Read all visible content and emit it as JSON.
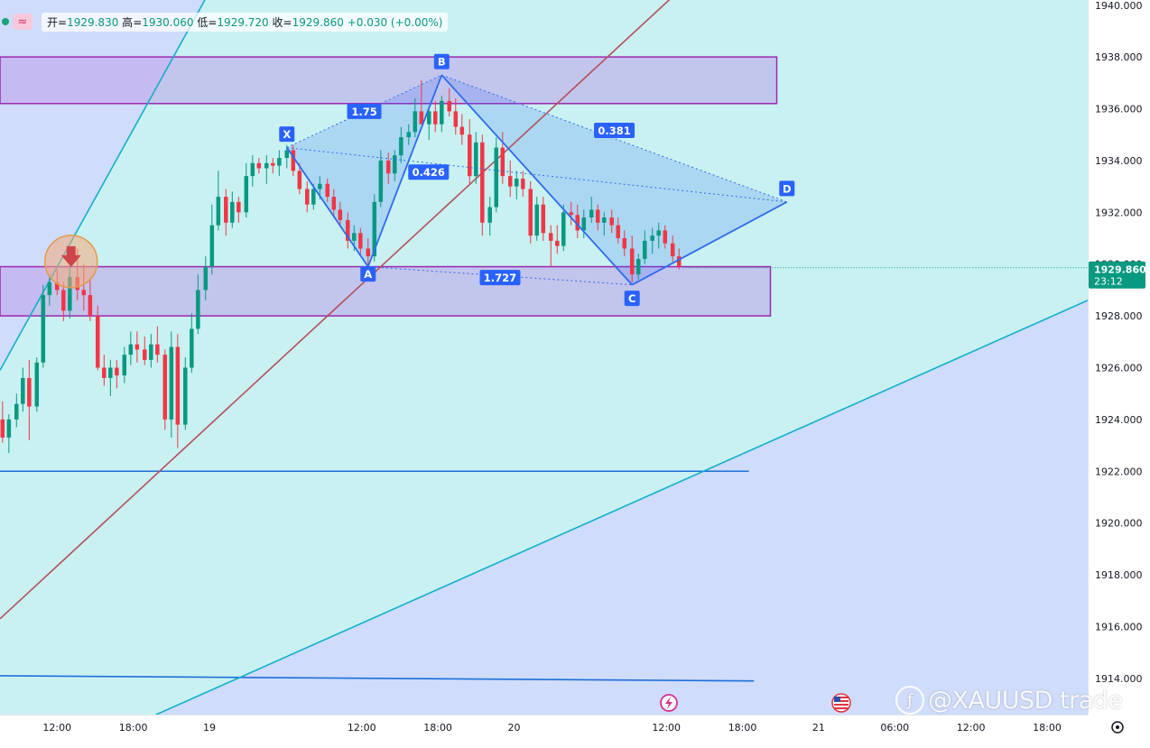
{
  "ohlc": {
    "open_label": "开",
    "open": "1929.830",
    "high_label": "高",
    "high": "1930.060",
    "low_label": "低",
    "low": "1929.720",
    "close_label": "收",
    "close": "1929.860",
    "change": "+0.030 (+0.00%)",
    "wave_icon": "≈"
  },
  "price_tag": {
    "price": "1929.860",
    "countdown": "23:12",
    "color": "#089981"
  },
  "watermark": {
    "icon": "ƒ",
    "text": "@XAUUSD trade"
  },
  "colors": {
    "background_cyan": "#c9f1f1",
    "background_blue": "#cfdcfb",
    "up": "#089981",
    "down": "#f23645",
    "harmonic": "#2962ff",
    "zone_border": "#9c27b0",
    "trendline_red": "#b5505a",
    "channel_cyan": "#12b0cc"
  },
  "chart_data": {
    "type": "candlestick",
    "instrument": "XAUUSD",
    "y_ticks": [
      "1914.000",
      "1916.000",
      "1918.000",
      "1920.000",
      "1922.000",
      "1924.000",
      "1926.000",
      "1928.000",
      "1930.000",
      "1932.000",
      "1934.000",
      "1936.000",
      "1938.000",
      "1940.000"
    ],
    "ylim": [
      1912.6,
      1940.2
    ],
    "x_ticks": [
      {
        "label": "12:00",
        "t": -4
      },
      {
        "label": "18:00",
        "t": 2
      },
      {
        "label": "19",
        "t": 8
      },
      {
        "label": "12:00",
        "t": 20
      },
      {
        "label": "18:00",
        "t": 26
      },
      {
        "label": "20",
        "t": 32
      },
      {
        "label": "12:00",
        "t": 44
      },
      {
        "label": "18:00",
        "t": 50
      },
      {
        "label": "21",
        "t": 56
      },
      {
        "label": "06:00",
        "t": 62
      },
      {
        "label": "12:00",
        "t": 68
      },
      {
        "label": "18:00",
        "t": 74
      }
    ],
    "xlim": [
      -8.5,
      77.2
    ],
    "candles": [
      [
        -8.3,
        1924.0,
        1924.7,
        1923.1,
        1923.3
      ],
      [
        -7.8,
        1923.3,
        1924.2,
        1922.7,
        1924.0
      ],
      [
        -7.2,
        1924.0,
        1925.0,
        1923.7,
        1924.6
      ],
      [
        -6.7,
        1924.6,
        1926.0,
        1924.3,
        1925.6
      ],
      [
        -6.2,
        1925.6,
        1926.3,
        1923.2,
        1924.5
      ],
      [
        -5.6,
        1924.5,
        1926.4,
        1924.3,
        1926.2
      ],
      [
        -5.1,
        1926.2,
        1929.2,
        1926.0,
        1928.8
      ],
      [
        -4.6,
        1928.8,
        1929.6,
        1928.4,
        1929.3
      ],
      [
        -4.0,
        1929.3,
        1929.8,
        1928.8,
        1929.0
      ],
      [
        -3.5,
        1929.0,
        1929.3,
        1927.8,
        1928.2
      ],
      [
        -3.0,
        1928.2,
        1929.9,
        1927.9,
        1929.5
      ],
      [
        -2.4,
        1929.5,
        1930.6,
        1928.6,
        1929.0
      ],
      [
        -1.9,
        1929.0,
        1930.0,
        1928.2,
        1928.8
      ],
      [
        -1.4,
        1928.8,
        1929.4,
        1927.8,
        1928.0
      ],
      [
        -0.8,
        1928.0,
        1928.4,
        1925.9,
        1926.0
      ],
      [
        -0.3,
        1926.0,
        1926.5,
        1925.3,
        1925.6
      ],
      [
        0.2,
        1925.6,
        1926.3,
        1924.9,
        1926.0
      ],
      [
        0.7,
        1926.0,
        1926.3,
        1925.2,
        1925.7
      ],
      [
        1.3,
        1925.7,
        1926.8,
        1925.4,
        1926.5
      ],
      [
        1.8,
        1926.5,
        1927.4,
        1926.1,
        1926.9
      ],
      [
        2.3,
        1926.9,
        1927.4,
        1926.2,
        1926.7
      ],
      [
        2.9,
        1926.7,
        1927.2,
        1926.1,
        1926.3
      ],
      [
        3.4,
        1926.3,
        1927.3,
        1926.0,
        1926.9
      ],
      [
        3.9,
        1926.9,
        1927.6,
        1926.2,
        1926.5
      ],
      [
        4.5,
        1926.5,
        1926.7,
        1923.6,
        1924.0
      ],
      [
        5.0,
        1924.0,
        1927.4,
        1923.3,
        1926.8
      ],
      [
        5.5,
        1926.8,
        1927.3,
        1922.9,
        1923.8
      ],
      [
        6.1,
        1923.8,
        1926.4,
        1923.6,
        1926.0
      ],
      [
        6.6,
        1926.0,
        1928.1,
        1925.8,
        1927.5
      ],
      [
        7.1,
        1927.5,
        1929.6,
        1927.3,
        1929.0
      ],
      [
        7.7,
        1929.0,
        1930.3,
        1928.6,
        1929.9
      ],
      [
        8.2,
        1929.9,
        1932.3,
        1929.6,
        1931.5
      ],
      [
        8.7,
        1931.5,
        1933.6,
        1931.3,
        1932.6
      ],
      [
        9.3,
        1932.6,
        1932.9,
        1931.1,
        1931.6
      ],
      [
        9.8,
        1931.6,
        1932.8,
        1931.4,
        1932.4
      ],
      [
        10.3,
        1932.4,
        1932.6,
        1931.6,
        1932.0
      ],
      [
        10.9,
        1932.0,
        1933.9,
        1931.8,
        1933.4
      ],
      [
        11.4,
        1933.4,
        1934.2,
        1933.0,
        1933.9
      ],
      [
        11.9,
        1933.9,
        1934.1,
        1933.5,
        1933.7
      ],
      [
        12.5,
        1933.7,
        1934.2,
        1933.1,
        1933.9
      ],
      [
        13.0,
        1933.9,
        1934.1,
        1933.5,
        1933.8
      ],
      [
        13.5,
        1933.8,
        1934.4,
        1933.4,
        1934.1
      ],
      [
        14.1,
        1934.1,
        1934.6,
        1933.7,
        1934.4
      ],
      [
        14.6,
        1934.4,
        1934.6,
        1933.4,
        1933.6
      ],
      [
        15.1,
        1933.6,
        1933.9,
        1932.7,
        1932.9
      ],
      [
        15.7,
        1932.9,
        1933.2,
        1932.0,
        1932.3
      ],
      [
        16.2,
        1932.3,
        1933.1,
        1932.1,
        1932.9
      ],
      [
        16.7,
        1932.9,
        1933.4,
        1932.5,
        1933.1
      ],
      [
        17.3,
        1933.1,
        1933.3,
        1932.4,
        1932.6
      ],
      [
        17.8,
        1932.6,
        1932.9,
        1931.8,
        1932.1
      ],
      [
        18.3,
        1932.1,
        1932.4,
        1931.5,
        1931.7
      ],
      [
        18.9,
        1931.7,
        1932.0,
        1930.6,
        1930.9
      ],
      [
        19.4,
        1930.9,
        1931.5,
        1930.5,
        1931.2
      ],
      [
        19.9,
        1931.2,
        1931.4,
        1930.3,
        1930.6
      ],
      [
        20.5,
        1930.6,
        1931.0,
        1929.9,
        1930.3
      ],
      [
        21.0,
        1930.3,
        1932.7,
        1930.1,
        1932.4
      ],
      [
        21.5,
        1932.4,
        1934.4,
        1932.2,
        1934.0
      ],
      [
        22.1,
        1934.0,
        1934.3,
        1933.1,
        1933.5
      ],
      [
        22.6,
        1933.5,
        1934.4,
        1933.2,
        1934.2
      ],
      [
        23.1,
        1934.2,
        1935.3,
        1933.9,
        1934.9
      ],
      [
        23.7,
        1934.9,
        1935.4,
        1934.6,
        1935.1
      ],
      [
        24.2,
        1935.1,
        1936.4,
        1934.9,
        1935.9
      ],
      [
        24.7,
        1935.9,
        1937.1,
        1935.6,
        1935.4
      ],
      [
        25.3,
        1935.4,
        1936.1,
        1934.8,
        1935.9
      ],
      [
        25.8,
        1935.9,
        1936.3,
        1935.1,
        1935.4
      ],
      [
        26.3,
        1935.4,
        1936.5,
        1935.1,
        1936.3
      ],
      [
        26.9,
        1936.3,
        1936.8,
        1935.7,
        1935.9
      ],
      [
        27.4,
        1935.9,
        1936.4,
        1935.0,
        1935.3
      ],
      [
        27.9,
        1935.3,
        1935.8,
        1934.6,
        1935.0
      ],
      [
        28.5,
        1935.0,
        1935.6,
        1933.1,
        1933.4
      ],
      [
        29.0,
        1933.4,
        1935.1,
        1933.1,
        1934.7
      ],
      [
        29.5,
        1934.7,
        1935.0,
        1931.1,
        1931.6
      ],
      [
        30.1,
        1931.6,
        1932.6,
        1931.1,
        1932.2
      ],
      [
        30.6,
        1932.2,
        1934.9,
        1932.0,
        1934.5
      ],
      [
        31.1,
        1934.5,
        1935.1,
        1933.1,
        1933.4
      ],
      [
        31.7,
        1933.4,
        1934.0,
        1932.6,
        1933.0
      ],
      [
        32.2,
        1933.0,
        1933.6,
        1932.5,
        1933.3
      ],
      [
        32.7,
        1933.3,
        1933.6,
        1932.6,
        1932.9
      ],
      [
        33.3,
        1932.9,
        1933.2,
        1930.8,
        1931.1
      ],
      [
        33.8,
        1931.1,
        1932.6,
        1930.9,
        1932.3
      ],
      [
        34.3,
        1932.3,
        1932.6,
        1930.9,
        1931.2
      ],
      [
        34.9,
        1931.2,
        1931.5,
        1929.9,
        1930.9
      ],
      [
        35.4,
        1930.9,
        1931.5,
        1930.4,
        1930.7
      ],
      [
        35.9,
        1930.7,
        1932.3,
        1930.5,
        1932.0
      ],
      [
        36.5,
        1932.0,
        1932.4,
        1931.5,
        1931.9
      ],
      [
        37.0,
        1931.9,
        1932.3,
        1931.0,
        1931.3
      ],
      [
        37.5,
        1931.3,
        1932.1,
        1931.0,
        1931.8
      ],
      [
        38.1,
        1931.8,
        1932.6,
        1931.6,
        1932.1
      ],
      [
        38.6,
        1932.1,
        1932.3,
        1931.3,
        1931.6
      ],
      [
        39.1,
        1931.6,
        1932.0,
        1931.1,
        1931.8
      ],
      [
        39.7,
        1931.8,
        1932.1,
        1931.2,
        1931.5
      ],
      [
        40.2,
        1931.5,
        1931.8,
        1930.8,
        1931.0
      ],
      [
        40.7,
        1931.0,
        1931.3,
        1930.3,
        1930.6
      ],
      [
        41.3,
        1930.6,
        1931.1,
        1929.3,
        1929.6
      ],
      [
        41.8,
        1929.6,
        1930.4,
        1929.4,
        1930.2
      ],
      [
        42.3,
        1930.2,
        1931.3,
        1930.0,
        1930.9
      ],
      [
        42.9,
        1930.9,
        1931.4,
        1930.4,
        1931.1
      ],
      [
        43.4,
        1931.1,
        1931.6,
        1930.6,
        1931.3
      ],
      [
        43.9,
        1931.3,
        1931.5,
        1930.6,
        1930.8
      ],
      [
        44.5,
        1930.8,
        1931.1,
        1930.1,
        1930.3
      ],
      [
        45.0,
        1930.3,
        1930.6,
        1929.8,
        1929.9
      ]
    ],
    "harmonic_pattern": {
      "points": [
        {
          "label": "X",
          "t": 14.1,
          "price": 1934.5
        },
        {
          "label": "A",
          "t": 20.5,
          "price": 1929.9
        },
        {
          "label": "B",
          "t": 26.3,
          "price": 1937.3
        },
        {
          "label": "C",
          "t": 41.3,
          "price": 1929.2
        },
        {
          "label": "D",
          "t": 53.5,
          "price": 1932.4
        }
      ],
      "ratios": [
        {
          "label": "1.75"
        },
        {
          "label": "0.426"
        },
        {
          "label": "0.381"
        },
        {
          "label": "1.727"
        }
      ]
    },
    "zones": [
      {
        "from_t": -8.5,
        "to_t": 52.7,
        "top": 1938.0,
        "bottom": 1936.2
      },
      {
        "from_t": -8.5,
        "to_t": 52.2,
        "top": 1929.9,
        "bottom": 1928.0
      }
    ],
    "horizontal_lines": [
      {
        "from_t": -8.5,
        "to_t": 50.5,
        "from_price": 1922.0,
        "to_price": 1922.0
      },
      {
        "from_t": -8.5,
        "to_t": 50.9,
        "from_price": 1914.1,
        "to_price": 1913.9
      }
    ],
    "trendlines": [
      {
        "kind": "red",
        "from_t": -8.5,
        "from_price": 1916.3,
        "to_t": 46.2,
        "to_price": 1941.1
      },
      {
        "kind": "cyan",
        "from_t": -8.5,
        "from_price": 1925.9,
        "to_t": 10.8,
        "to_price": 1943.0
      },
      {
        "kind": "cyan",
        "from_t": 3.8,
        "from_price": 1912.6,
        "to_t": 77.2,
        "to_price": 1928.6
      }
    ],
    "arrow_marker": {
      "t": -2.9,
      "price": 1930.1
    }
  }
}
